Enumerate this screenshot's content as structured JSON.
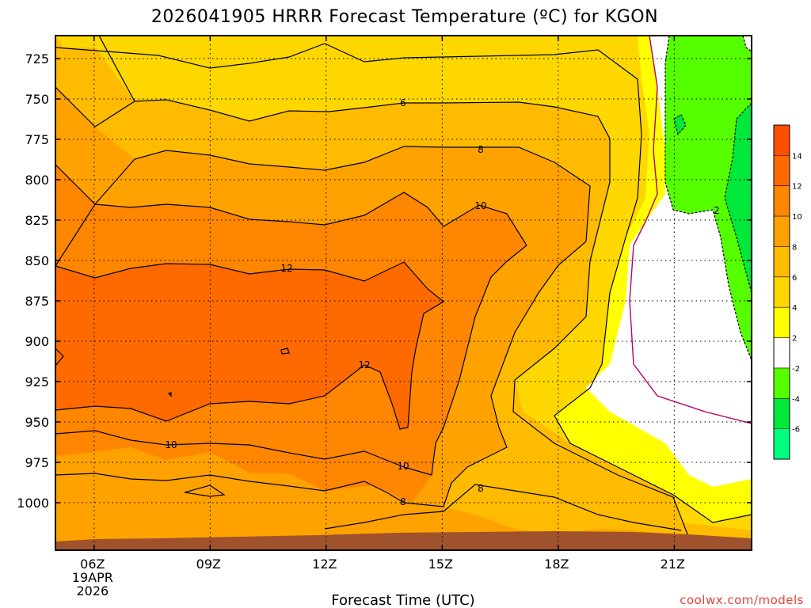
{
  "chart_data": {
    "type": "heatmap",
    "title": "2026041905 HRRR Forecast Temperature (ºC) for KGON",
    "xlabel": "Forecast Time (UTC)",
    "ylabel": "",
    "credit": "coolwx.com/models",
    "x_ticks": [
      {
        "value": 6,
        "lines": [
          "06Z",
          "19APR",
          "2026"
        ]
      },
      {
        "value": 9,
        "lines": [
          "09Z"
        ]
      },
      {
        "value": 12,
        "lines": [
          "12Z"
        ]
      },
      {
        "value": 15,
        "lines": [
          "15Z"
        ]
      },
      {
        "value": 18,
        "lines": [
          "18Z"
        ]
      },
      {
        "value": 21,
        "lines": [
          "21Z"
        ]
      }
    ],
    "xlim": [
      5,
      23
    ],
    "y_ticks": [
      "725",
      "750",
      "775",
      "800",
      "825",
      "850",
      "875",
      "900",
      "925",
      "950",
      "975",
      "1000"
    ],
    "ylim": [
      1015,
      712
    ],
    "y_scale": "reversed",
    "grid": true,
    "colorbar": {
      "position": "right",
      "bins": [
        {
          "min": -8,
          "max": -6,
          "color": "#00ff80"
        },
        {
          "min": -6,
          "max": -4,
          "color": "#00e83a"
        },
        {
          "min": -4,
          "max": -2,
          "color": "#55ff00"
        },
        {
          "min": -2,
          "max": 2,
          "color": "#ffffff"
        },
        {
          "min": 2,
          "max": 4,
          "color": "#ffff00"
        },
        {
          "min": 4,
          "max": 6,
          "color": "#ffd700"
        },
        {
          "min": 6,
          "max": 8,
          "color": "#ffbb00"
        },
        {
          "min": 8,
          "max": 10,
          "color": "#ffa200"
        },
        {
          "min": 10,
          "max": 12,
          "color": "#ff8600"
        },
        {
          "min": 12,
          "max": 14,
          "color": "#ff6a00"
        },
        {
          "min": 14,
          "max": 16,
          "color": "#ff4e00"
        }
      ],
      "tick_labels": [
        "-6",
        "-4",
        "-2",
        "2",
        "4",
        "6",
        "8",
        "10",
        "12",
        "14"
      ]
    },
    "contour_labels": [
      {
        "text": "6",
        "x": 14.0,
        "y": 748
      },
      {
        "text": "8",
        "x": 16.0,
        "y": 773
      },
      {
        "text": "10",
        "x": 16.0,
        "y": 803
      },
      {
        "text": "12",
        "x": 11.0,
        "y": 846
      },
      {
        "text": "12",
        "x": 13.0,
        "y": 897
      },
      {
        "text": "10",
        "x": 8.0,
        "y": 948
      },
      {
        "text": "10",
        "x": 14.0,
        "y": 970
      },
      {
        "text": "8",
        "x": 14.0,
        "y": 984
      },
      {
        "text": "8",
        "x": 16.0,
        "y": 977
      },
      {
        "text": "2",
        "x": 22.0,
        "y": 805
      }
    ],
    "ground_color": "#a0522d"
  }
}
